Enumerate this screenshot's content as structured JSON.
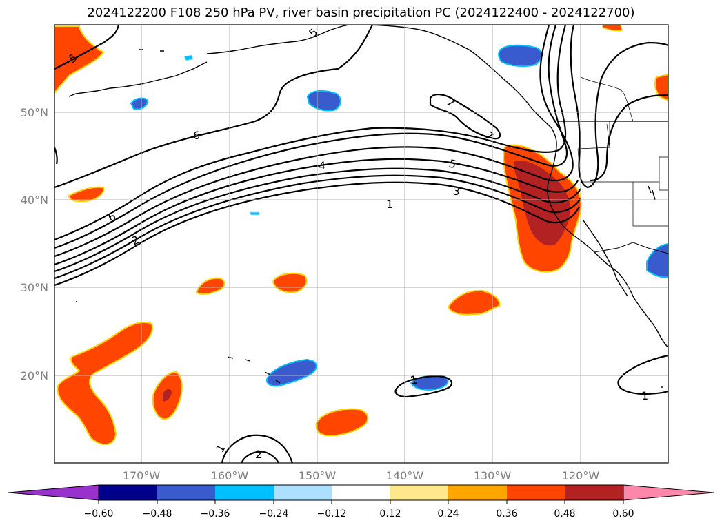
{
  "title": "2024122200 F108 250 hPa PV, river basin precipitation PC (2024122400 - 2024122700)",
  "lat_labels": [
    "50°N",
    "40°N",
    "30°N",
    "20°N"
  ],
  "lon_labels": [
    "170°W",
    "160°W",
    "150°W",
    "140°W",
    "130°W",
    "120°W"
  ],
  "contour_labels": [
    "5",
    "5",
    "6",
    "6",
    "2",
    "4",
    "5",
    "3",
    "1",
    "7",
    "7",
    "1",
    "1",
    "1",
    "2"
  ],
  "colorbar": {
    "ticks": [
      "−0.60",
      "−0.48",
      "−0.36",
      "−0.24",
      "−0.12",
      "0.12",
      "0.24",
      "0.36",
      "0.48",
      "0.60"
    ],
    "colors": [
      "#9932cc",
      "#00008b",
      "#3a5bcd",
      "#00bfff",
      "#addfff",
      "#ffffff",
      "#ffe88c",
      "#ffa500",
      "#ff4500",
      "#b22222",
      "#ff87ab"
    ]
  }
}
